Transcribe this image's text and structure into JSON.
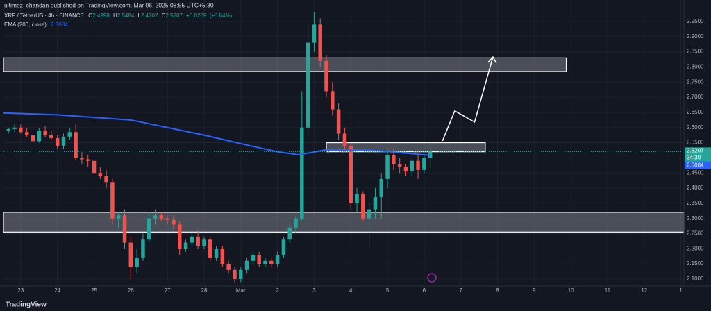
{
  "header": {
    "publisher": "ultimez_chandan published on TradingView.com, Mar 06, 2025 08:55 UTC+5:30",
    "footer": "TradingView"
  },
  "chart_data": {
    "type": "candlestick",
    "symbol": "XRP / TetherUS · 4h · BINANCE",
    "ohlc_letters": [
      "O",
      "H",
      "L",
      "C"
    ],
    "ohlc_legend": {
      "open": 2.4998,
      "high": 2.5484,
      "low": 2.4707,
      "close": 2.5207,
      "change": {
        "value": 0.0209,
        "label": "+0.0209"
      },
      "change_pct": {
        "value": 0.84,
        "label": "(+0.84%)"
      }
    },
    "ema_legend": "EMA (200, close)",
    "up_color": "#26a69a",
    "down_color": "#ef5350",
    "ema_color": "#2962ff",
    "x": [
      -8,
      -4,
      0,
      4,
      8,
      12,
      16,
      20,
      24,
      28,
      32,
      36,
      40,
      44,
      48,
      52,
      56,
      60,
      64,
      68,
      72,
      76,
      80,
      84,
      88,
      92,
      96,
      100,
      104,
      108,
      112,
      116,
      120,
      124,
      128,
      132,
      136,
      140,
      144,
      148,
      152,
      156,
      160,
      164,
      168,
      172,
      176,
      180,
      184,
      188,
      192,
      196,
      200,
      204,
      208,
      212,
      216,
      220,
      224,
      228,
      232,
      236,
      240,
      244,
      248,
      252,
      256,
      260,
      264,
      268
    ],
    "open": [
      2.59,
      2.595,
      2.6,
      2.585,
      2.575,
      2.555,
      2.59,
      2.575,
      2.565,
      2.54,
      2.57,
      2.585,
      2.5,
      2.495,
      2.49,
      2.45,
      2.44,
      2.42,
      2.3,
      2.31,
      2.22,
      2.14,
      2.17,
      2.23,
      2.3,
      2.31,
      2.3,
      2.295,
      2.28,
      2.2,
      2.22,
      2.24,
      2.21,
      2.23,
      2.17,
      2.2,
      2.15,
      2.13,
      2.1,
      2.13,
      2.16,
      2.18,
      2.15,
      2.16,
      2.15,
      2.18,
      2.23,
      2.27,
      2.3,
      2.6,
      2.88,
      2.94,
      2.82,
      2.72,
      2.66,
      2.58,
      2.54,
      2.35,
      2.38,
      2.3,
      2.33,
      2.37,
      2.43,
      2.51,
      2.48,
      2.47,
      2.455,
      2.49,
      2.46,
      2.4998
    ],
    "high": [
      2.6,
      2.61,
      2.61,
      2.6,
      2.59,
      2.6,
      2.605,
      2.59,
      2.575,
      2.58,
      2.6,
      2.61,
      2.52,
      2.51,
      2.5,
      2.47,
      2.46,
      2.43,
      2.32,
      2.33,
      2.24,
      2.2,
      2.25,
      2.32,
      2.33,
      2.32,
      2.31,
      2.31,
      2.29,
      2.23,
      2.25,
      2.26,
      2.24,
      2.24,
      2.21,
      2.21,
      2.16,
      2.14,
      2.14,
      2.17,
      2.19,
      2.19,
      2.17,
      2.17,
      2.19,
      2.24,
      2.28,
      2.31,
      2.72,
      2.94,
      2.98,
      2.96,
      2.84,
      2.75,
      2.68,
      2.6,
      2.55,
      2.4,
      2.39,
      2.35,
      2.4,
      2.45,
      2.53,
      2.53,
      2.5,
      2.48,
      2.5,
      2.51,
      2.51,
      2.5484
    ],
    "low": [
      2.58,
      2.585,
      2.58,
      2.57,
      2.55,
      2.55,
      2.57,
      2.56,
      2.53,
      2.53,
      2.56,
      2.49,
      2.48,
      2.47,
      2.44,
      2.43,
      2.4,
      2.28,
      2.27,
      2.2,
      2.1,
      2.12,
      2.16,
      2.22,
      2.28,
      2.29,
      2.28,
      2.26,
      2.18,
      2.19,
      2.21,
      2.2,
      2.2,
      2.16,
      2.16,
      2.14,
      2.12,
      2.09,
      2.09,
      2.12,
      2.15,
      2.14,
      2.14,
      2.14,
      2.14,
      2.17,
      2.22,
      2.25,
      2.29,
      2.58,
      2.85,
      2.8,
      2.7,
      2.64,
      2.56,
      2.52,
      2.33,
      2.32,
      2.29,
      2.21,
      2.3,
      2.3,
      2.4,
      2.46,
      2.45,
      2.44,
      2.44,
      2.43,
      2.45,
      2.4707
    ],
    "close": [
      2.595,
      2.6,
      2.585,
      2.575,
      2.555,
      2.59,
      2.575,
      2.565,
      2.54,
      2.57,
      2.585,
      2.5,
      2.495,
      2.49,
      2.45,
      2.44,
      2.42,
      2.3,
      2.31,
      2.22,
      2.14,
      2.17,
      2.23,
      2.3,
      2.31,
      2.3,
      2.295,
      2.28,
      2.2,
      2.22,
      2.24,
      2.21,
      2.23,
      2.17,
      2.2,
      2.15,
      2.13,
      2.1,
      2.13,
      2.16,
      2.18,
      2.15,
      2.16,
      2.15,
      2.18,
      2.23,
      2.27,
      2.3,
      2.6,
      2.88,
      2.94,
      2.82,
      2.72,
      2.66,
      2.58,
      2.54,
      2.35,
      2.38,
      2.3,
      2.33,
      2.37,
      2.43,
      2.51,
      2.48,
      2.47,
      2.455,
      2.49,
      2.46,
      2.5,
      2.5207
    ],
    "ema": {
      "x": [
        -11.3,
        24,
        72,
        120,
        150,
        168,
        182,
        200,
        230,
        268
      ],
      "values": [
        2.648,
        2.642,
        2.625,
        2.575,
        2.54,
        2.52,
        2.51,
        2.527,
        2.525,
        2.5084
      ]
    },
    "zones": [
      {
        "x": [
          -11.3,
          357
        ],
        "y": [
          2.785,
          2.83
        ]
      },
      {
        "x": [
          200,
          304
        ],
        "y": [
          2.52,
          2.55
        ]
      },
      {
        "x": [
          -11.3,
          434
        ],
        "y": [
          2.255,
          2.32
        ]
      }
    ],
    "projection": {
      "x": [
        276,
        284,
        297,
        309
      ],
      "values": [
        2.556,
        2.655,
        2.618,
        2.833
      ]
    },
    "last_price": 2.5207,
    "countdown": "34:30",
    "ema_last": 2.5084,
    "xlim": [
      -11.3,
      434
    ],
    "ylim": [
      2.077,
      2.9935
    ],
    "xticks": [
      {
        "value": 0,
        "label": "23"
      },
      {
        "value": 24,
        "label": "24"
      },
      {
        "value": 48,
        "label": "25"
      },
      {
        "value": 72,
        "label": "26"
      },
      {
        "value": 96,
        "label": "27"
      },
      {
        "value": 120,
        "label": "28"
      },
      {
        "value": 144,
        "label": "Mar"
      },
      {
        "value": 168,
        "label": "2"
      },
      {
        "value": 192,
        "label": "3"
      },
      {
        "value": 216,
        "label": "4"
      },
      {
        "value": 240,
        "label": "5"
      },
      {
        "value": 264,
        "label": "6"
      },
      {
        "value": 288,
        "label": "7"
      },
      {
        "value": 312,
        "label": "8"
      },
      {
        "value": 336,
        "label": "9"
      },
      {
        "value": 360,
        "label": "10"
      },
      {
        "value": 384,
        "label": "11"
      },
      {
        "value": 408,
        "label": "12"
      },
      {
        "value": 432,
        "label": "1"
      }
    ],
    "yticks": [
      {
        "value": 2.1,
        "label": "2.1000"
      },
      {
        "value": 2.15,
        "label": "2.1500"
      },
      {
        "value": 2.2,
        "label": "2.2000"
      },
      {
        "value": 2.25,
        "label": "2.2500"
      },
      {
        "value": 2.3,
        "label": "2.3000"
      },
      {
        "value": 2.35,
        "label": "2.3500"
      },
      {
        "value": 2.4,
        "label": "2.4000"
      },
      {
        "value": 2.45,
        "label": "2.4500"
      },
      {
        "value": 2.5,
        "label": "2.5000"
      },
      {
        "value": 2.55,
        "label": "2.5500"
      },
      {
        "value": 2.6,
        "label": "2.6000"
      },
      {
        "value": 2.65,
        "label": "2.6500"
      },
      {
        "value": 2.7,
        "label": "2.7000"
      },
      {
        "value": 2.75,
        "label": "2.7500"
      },
      {
        "value": 2.8,
        "label": "2.8000"
      },
      {
        "value": 2.85,
        "label": "2.8500"
      },
      {
        "value": 2.9,
        "label": "2.9000"
      },
      {
        "value": 2.95,
        "label": "2.9500"
      }
    ],
    "grid": true
  }
}
